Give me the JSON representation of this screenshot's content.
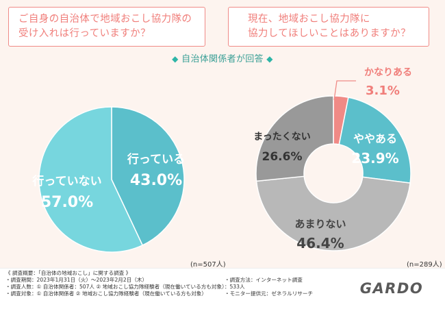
{
  "questions": {
    "q1": [
      "ご自身の自治体で地域おこし協力隊の",
      "受け入れは行っていますか？"
    ],
    "q2": [
      "現在、地域おこし協力隊に",
      "協力してほしいことはありますか？"
    ]
  },
  "subtitle": "自治体関係者が回答",
  "chart_data": [
    {
      "type": "pie",
      "title": "ご自身の自治体で地域おこし協力隊の受け入れは行っていますか？",
      "note": "(n=507人)",
      "categories": [
        "行っている",
        "行っていない"
      ],
      "values": [
        43.0,
        57.0
      ],
      "value_labels": [
        "43.0%",
        "57.0%"
      ],
      "colors": [
        "#5bbfcb",
        "#77d6de"
      ]
    },
    {
      "type": "pie",
      "subtype": "donut",
      "title": "現在、地域おこし協力隊に協力してほしいことはありますか？",
      "note": "(n=289人)",
      "categories": [
        "かなりある",
        "ややある",
        "あまりない",
        "まったくない"
      ],
      "values": [
        3.1,
        23.9,
        46.4,
        26.6
      ],
      "value_labels": [
        "3.1%",
        "23.9%",
        "46.4%",
        "26.6%"
      ],
      "colors": [
        "#f08a86",
        "#5bbfcb",
        "#b8b8b8",
        "#999999"
      ]
    }
  ],
  "footer": {
    "overview": "《 調査概要：「自治体の地域おこし」に関する調査 》",
    "period": "・調査期間：2023年1月31日（火）～2023年2月2日（木）",
    "people": "・調査人数：① 自治体関係者：507人 ② 地域おこし協力隊経験者（現在働いている方も対象）：533人",
    "target": "・調査対象：① 自治体関係者 ② 地域おこし協力隊経験者（現在働いている方も対象）",
    "method": "・調査方法：インターネット調査",
    "monitor": "・モニター提供元：ゼネラルリサーチ"
  },
  "logo": "GARDO"
}
